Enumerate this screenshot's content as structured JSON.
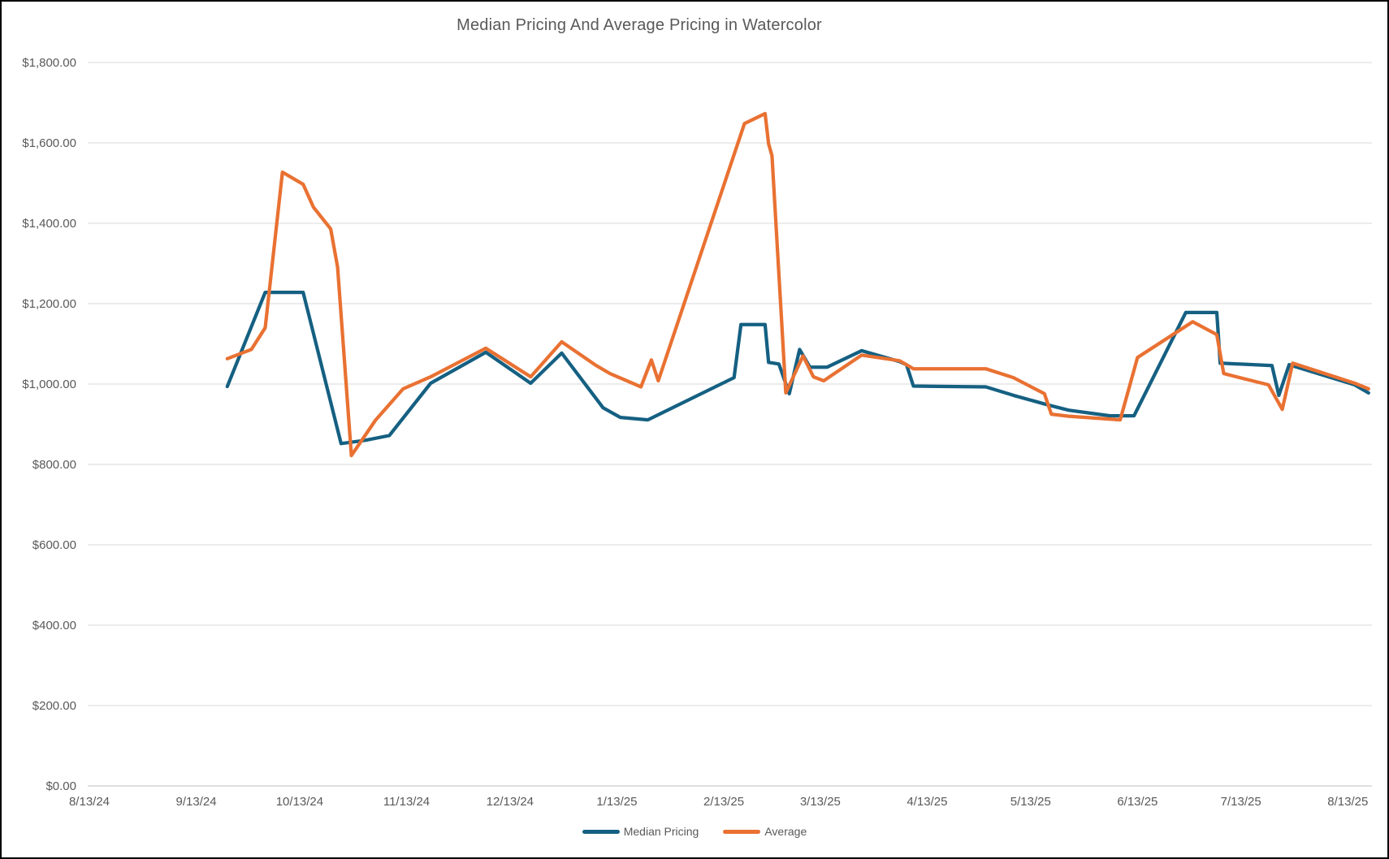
{
  "window": {
    "background": "#FFFFFF",
    "border_color": "#000000"
  },
  "chart_data": {
    "type": "line",
    "title": "Median Pricing And Average Pricing in Watercolor",
    "title_color": "#595959",
    "grid": true,
    "legend_position": "bottom",
    "x_axis": {
      "start": "2024-08-13",
      "end": "2025-08-20",
      "tick_dates": [
        "2024-08-13",
        "2024-09-13",
        "2024-10-13",
        "2024-11-13",
        "2024-12-13",
        "2025-01-13",
        "2025-02-13",
        "2025-03-13",
        "2025-04-13",
        "2025-05-13",
        "2025-06-13",
        "2025-07-13",
        "2025-08-13"
      ],
      "tick_labels": [
        "8/13/24",
        "9/13/24",
        "10/13/24",
        "11/13/24",
        "12/13/24",
        "1/13/25",
        "2/13/25",
        "3/13/25",
        "4/13/25",
        "5/13/25",
        "6/13/25",
        "7/13/25",
        "8/13/25"
      ]
    },
    "y_axis": {
      "min": 0,
      "max": 1800,
      "step": 200,
      "tick_labels": [
        "$0.00",
        "$200.00",
        "$400.00",
        "$600.00",
        "$800.00",
        "$1,000.00",
        "$1,200.00",
        "$1,400.00",
        "$1,600.00",
        "$1,800.00"
      ],
      "gridline_color": "#D9D9D9",
      "axis_line_color": "#BFBFBF",
      "label_color": "#595959"
    },
    "series": [
      {
        "name": "Median Pricing",
        "color": "#156082",
        "points": [
          [
            "2024-09-22",
            994
          ],
          [
            "2024-10-03",
            1228
          ],
          [
            "2024-10-14",
            1228
          ],
          [
            "2024-10-25",
            852
          ],
          [
            "2024-11-01",
            860
          ],
          [
            "2024-11-08",
            872
          ],
          [
            "2024-11-20",
            1002
          ],
          [
            "2024-12-06",
            1079
          ],
          [
            "2024-12-19",
            1002
          ],
          [
            "2024-12-28",
            1077
          ],
          [
            "2025-01-09",
            941
          ],
          [
            "2025-01-14",
            917
          ],
          [
            "2025-01-22",
            911
          ],
          [
            "2025-02-16",
            1016
          ],
          [
            "2025-02-18",
            1148
          ],
          [
            "2025-02-25",
            1148
          ],
          [
            "2025-02-26",
            1054
          ],
          [
            "2025-03-01",
            1050
          ],
          [
            "2025-03-04",
            976
          ],
          [
            "2025-03-07",
            1086
          ],
          [
            "2025-03-10",
            1042
          ],
          [
            "2025-03-15",
            1042
          ],
          [
            "2025-03-25",
            1083
          ],
          [
            "2025-04-05",
            1056
          ],
          [
            "2025-04-07",
            1048
          ],
          [
            "2025-04-09",
            995
          ],
          [
            "2025-04-30",
            993
          ],
          [
            "2025-05-08",
            972
          ],
          [
            "2025-05-18",
            948
          ],
          [
            "2025-05-24",
            935
          ],
          [
            "2025-06-05",
            921
          ],
          [
            "2025-06-12",
            921
          ],
          [
            "2025-06-27",
            1178
          ],
          [
            "2025-07-06",
            1178
          ],
          [
            "2025-07-07",
            1052
          ],
          [
            "2025-07-22",
            1046
          ],
          [
            "2025-07-24",
            972
          ],
          [
            "2025-07-27",
            1048
          ],
          [
            "2025-08-15",
            998
          ],
          [
            "2025-08-19",
            978
          ]
        ]
      },
      {
        "name": "Average",
        "color": "#E97132",
        "points": [
          [
            "2024-09-22",
            1063
          ],
          [
            "2024-09-29",
            1086
          ],
          [
            "2024-10-03",
            1140
          ],
          [
            "2024-10-08",
            1527
          ],
          [
            "2024-10-14",
            1497
          ],
          [
            "2024-10-17",
            1440
          ],
          [
            "2024-10-22",
            1386
          ],
          [
            "2024-10-24",
            1291
          ],
          [
            "2024-10-28",
            822
          ],
          [
            "2024-11-04",
            910
          ],
          [
            "2024-11-12",
            988
          ],
          [
            "2024-11-20",
            1018
          ],
          [
            "2024-12-06",
            1089
          ],
          [
            "2024-12-19",
            1018
          ],
          [
            "2024-12-28",
            1105
          ],
          [
            "2025-01-07",
            1046
          ],
          [
            "2025-01-11",
            1026
          ],
          [
            "2025-01-20",
            993
          ],
          [
            "2025-01-23",
            1060
          ],
          [
            "2025-01-25",
            1008
          ],
          [
            "2025-02-19",
            1648
          ],
          [
            "2025-02-25",
            1673
          ],
          [
            "2025-02-26",
            1598
          ],
          [
            "2025-02-27",
            1568
          ],
          [
            "2025-03-03",
            978
          ],
          [
            "2025-03-08",
            1070
          ],
          [
            "2025-03-11",
            1018
          ],
          [
            "2025-03-14",
            1008
          ],
          [
            "2025-03-25",
            1072
          ],
          [
            "2025-04-05",
            1058
          ],
          [
            "2025-04-09",
            1038
          ],
          [
            "2025-04-30",
            1038
          ],
          [
            "2025-05-08",
            1016
          ],
          [
            "2025-05-17",
            976
          ],
          [
            "2025-05-19",
            925
          ],
          [
            "2025-05-24",
            920
          ],
          [
            "2025-06-08",
            911
          ],
          [
            "2025-06-13",
            1066
          ],
          [
            "2025-06-29",
            1155
          ],
          [
            "2025-07-06",
            1123
          ],
          [
            "2025-07-08",
            1026
          ],
          [
            "2025-07-21",
            998
          ],
          [
            "2025-07-25",
            937
          ],
          [
            "2025-07-28",
            1052
          ],
          [
            "2025-08-15",
            1002
          ],
          [
            "2025-08-19",
            988
          ]
        ]
      }
    ]
  }
}
